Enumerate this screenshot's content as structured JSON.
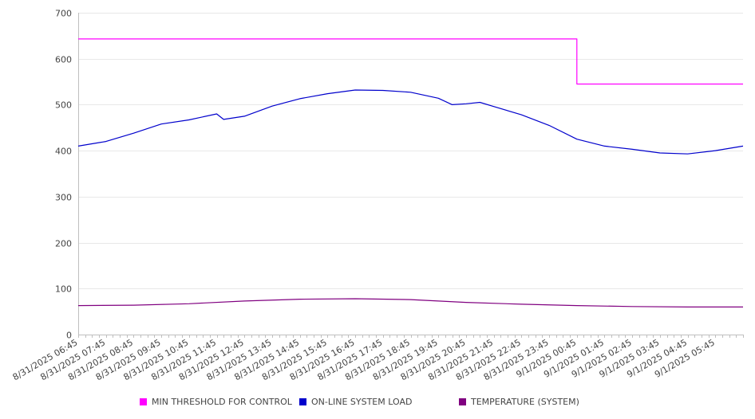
{
  "chart_data": {
    "type": "line",
    "title": "",
    "xlabel": "",
    "ylabel": "",
    "ylim": [
      0,
      700
    ],
    "y_ticks": [
      0,
      100,
      200,
      300,
      400,
      500,
      600,
      700
    ],
    "grid": true,
    "legend_position": "bottom",
    "x_start": "8/31/2025 06:45",
    "x_end": "9/1/2025 06:45",
    "x_step_minutes": 15,
    "x_tick_labels": [
      "8/31/2025 06:45",
      "8/31/2025 07:45",
      "8/31/2025 08:45",
      "8/31/2025 09:45",
      "8/31/2025 10:45",
      "8/31/2025 11:45",
      "8/31/2025 12:45",
      "8/31/2025 13:45",
      "8/31/2025 14:45",
      "8/31/2025 15:45",
      "8/31/2025 16:45",
      "8/31/2025 17:45",
      "8/31/2025 18:45",
      "8/31/2025 19:45",
      "8/31/2025 20:45",
      "8/31/2025 21:45",
      "8/31/2025 22:45",
      "8/31/2025 23:45",
      "9/1/2025 00:45",
      "9/1/2025 01:45",
      "9/1/2025 02:45",
      "9/1/2025 03:45",
      "9/1/2025 04:45",
      "9/1/2025 05:45"
    ],
    "series": [
      {
        "name": "MIN THRESHOLD FOR CONTROL",
        "color": "#ff00ff",
        "points": [
          [
            "8/31/2025 06:45",
            643
          ],
          [
            "9/1/2025 00:45",
            643
          ],
          [
            "9/1/2025 00:45",
            545
          ],
          [
            "9/1/2025 06:45",
            545
          ]
        ]
      },
      {
        "name": "ON-LINE SYSTEM LOAD",
        "color": "#0000cc",
        "points": [
          [
            "8/31/2025 06:45",
            410
          ],
          [
            "8/31/2025 07:45",
            420
          ],
          [
            "8/31/2025 08:45",
            438
          ],
          [
            "8/31/2025 09:45",
            458
          ],
          [
            "8/31/2025 10:45",
            467
          ],
          [
            "8/31/2025 11:45",
            480
          ],
          [
            "8/31/2025 12:00",
            468
          ],
          [
            "8/31/2025 12:45",
            475
          ],
          [
            "8/31/2025 13:45",
            497
          ],
          [
            "8/31/2025 14:45",
            513
          ],
          [
            "8/31/2025 15:45",
            524
          ],
          [
            "8/31/2025 16:45",
            532
          ],
          [
            "8/31/2025 17:45",
            531
          ],
          [
            "8/31/2025 18:45",
            527
          ],
          [
            "8/31/2025 19:45",
            514
          ],
          [
            "8/31/2025 20:15",
            500
          ],
          [
            "8/31/2025 20:45",
            502
          ],
          [
            "8/31/2025 21:15",
            505
          ],
          [
            "8/31/2025 21:45",
            496
          ],
          [
            "8/31/2025 22:45",
            478
          ],
          [
            "8/31/2025 23:45",
            455
          ],
          [
            "9/1/2025 00:45",
            425
          ],
          [
            "9/1/2025 01:45",
            410
          ],
          [
            "9/1/2025 02:45",
            403
          ],
          [
            "9/1/2025 03:45",
            395
          ],
          [
            "9/1/2025 04:45",
            393
          ],
          [
            "9/1/2025 05:45",
            400
          ],
          [
            "9/1/2025 06:45",
            410
          ]
        ]
      },
      {
        "name": "TEMPERATURE (SYSTEM)",
        "color": "#800080",
        "points": [
          [
            "8/31/2025 06:45",
            63
          ],
          [
            "8/31/2025 08:45",
            64
          ],
          [
            "8/31/2025 10:45",
            67
          ],
          [
            "8/31/2025 12:45",
            73
          ],
          [
            "8/31/2025 14:45",
            77
          ],
          [
            "8/31/2025 16:45",
            78
          ],
          [
            "8/31/2025 18:45",
            76
          ],
          [
            "8/31/2025 20:45",
            70
          ],
          [
            "8/31/2025 22:45",
            66
          ],
          [
            "9/1/2025 00:45",
            63
          ],
          [
            "9/1/2025 02:45",
            61
          ],
          [
            "9/1/2025 04:45",
            60
          ],
          [
            "9/1/2025 06:45",
            60
          ]
        ]
      }
    ]
  }
}
